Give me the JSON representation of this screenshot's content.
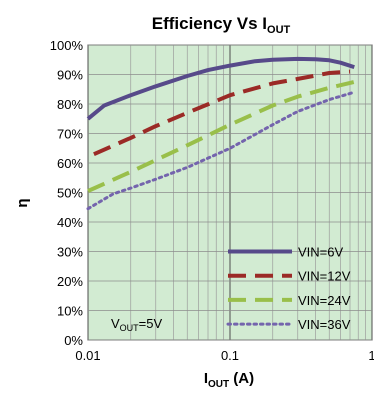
{
  "chart_data": {
    "type": "line",
    "title_main": "Efficiency Vs  I",
    "title_sub": "OUT",
    "ylabel": "η",
    "xlabel_main": "I",
    "xlabel_sub": "OUT",
    "xlabel_unit": " (A)",
    "xscale": "log",
    "xlim": [
      0.01,
      1
    ],
    "ylim": [
      0,
      100
    ],
    "grid": true,
    "legend_position": "bottom-right",
    "x_ticks": [
      "0.01",
      "0.1",
      "1"
    ],
    "y_ticks": [
      "0%",
      "10%",
      "20%",
      "30%",
      "40%",
      "50%",
      "60%",
      "70%",
      "80%",
      "90%",
      "100%"
    ],
    "annotation": {
      "main": "V",
      "sub": "OUT",
      "rest": "=5V"
    },
    "series": [
      {
        "name": "VIN=6V",
        "color": "#574a8a",
        "style": "solid",
        "x": [
          0.01,
          0.013,
          0.02,
          0.03,
          0.05,
          0.07,
          0.1,
          0.15,
          0.2,
          0.3,
          0.4,
          0.5,
          0.6,
          0.75
        ],
        "y": [
          75,
          79.5,
          83,
          86,
          89.5,
          91.5,
          93,
          94.5,
          95,
          95.3,
          95.2,
          94.8,
          94,
          92.5
        ]
      },
      {
        "name": "VIN=12V",
        "color": "#9b2a26",
        "style": "dashed",
        "x": [
          0.011,
          0.02,
          0.03,
          0.05,
          0.1,
          0.2,
          0.3,
          0.5,
          0.7
        ],
        "y": [
          63,
          68.5,
          72.5,
          77,
          83,
          87,
          88.5,
          90.5,
          91
        ]
      },
      {
        "name": "VIN=24V",
        "color": "#99bf4a",
        "style": "dashed",
        "x": [
          0.01,
          0.02,
          0.03,
          0.05,
          0.1,
          0.2,
          0.3,
          0.5,
          0.75
        ],
        "y": [
          50.5,
          57,
          61,
          66,
          73,
          79.5,
          82.5,
          85.5,
          87.5
        ]
      },
      {
        "name": "VIN=36V",
        "color": "#7464ad",
        "style": "dotted",
        "x": [
          0.01,
          0.015,
          0.02,
          0.03,
          0.05,
          0.1,
          0.2,
          0.3,
          0.5,
          0.75
        ],
        "y": [
          44.5,
          49.5,
          51.5,
          54.5,
          58.5,
          65,
          73,
          77.5,
          81.5,
          84
        ]
      }
    ]
  }
}
